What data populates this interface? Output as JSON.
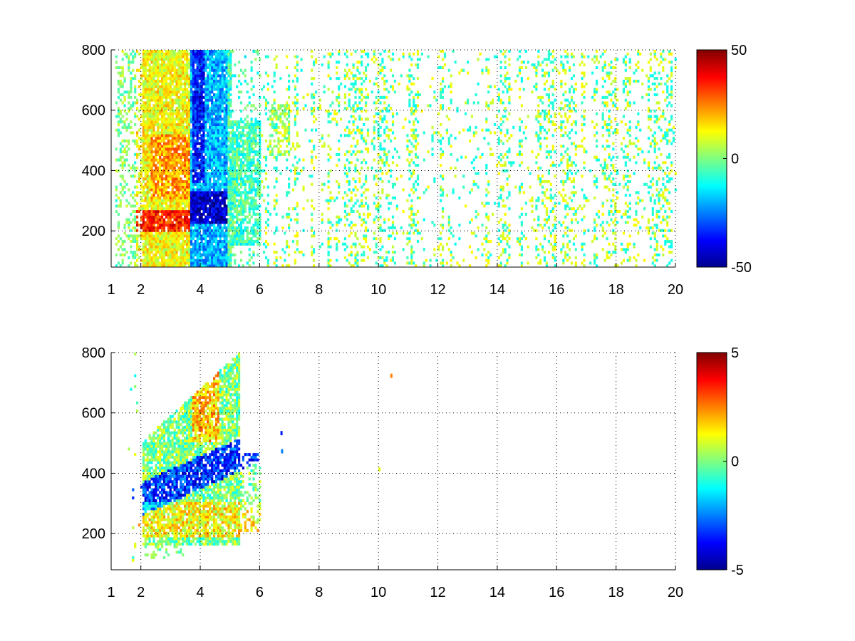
{
  "chart_data": [
    {
      "type": "heatmap",
      "title": "",
      "xlabel": "",
      "ylabel": "",
      "xlim": [
        1,
        20
      ],
      "ylim": [
        80,
        800
      ],
      "x_ticks": [
        "1",
        "2",
        "4",
        "6",
        "8",
        "10",
        "12",
        "14",
        "16",
        "18",
        "20"
      ],
      "x_tick_values": [
        1,
        2,
        4,
        6,
        8,
        10,
        12,
        14,
        16,
        18,
        20
      ],
      "y_ticks": [
        "200",
        "400",
        "600",
        "800"
      ],
      "y_tick_values": [
        200,
        400,
        600,
        800
      ],
      "grid": true,
      "colormap": "jet",
      "colorbar": {
        "min": -50,
        "max": 50,
        "ticks": [
          "50",
          "0",
          "-50"
        ],
        "tick_values": [
          50,
          0,
          -50
        ]
      },
      "data_summary": "Dense values for x in 1-6: positive (orange/red, up to ~40) near y 200-260 around x 2-3.5; strongly negative (blue, ~-45) around x 3.7-4.8, y 200-800; sparse values near 0 (-15 to 15) scattered for x > 6."
    },
    {
      "type": "heatmap",
      "title": "",
      "xlabel": "",
      "ylabel": "",
      "xlim": [
        1,
        20
      ],
      "ylim": [
        80,
        800
      ],
      "x_ticks": [
        "1",
        "2",
        "4",
        "6",
        "8",
        "10",
        "12",
        "14",
        "16",
        "18",
        "20"
      ],
      "x_tick_values": [
        1,
        2,
        4,
        6,
        8,
        10,
        12,
        14,
        16,
        18,
        20
      ],
      "y_ticks": [
        "200",
        "400",
        "600",
        "800"
      ],
      "y_tick_values": [
        200,
        400,
        600,
        800
      ],
      "grid": true,
      "colormap": "jet",
      "colorbar": {
        "min": -5,
        "max": 5,
        "ticks": [
          "5",
          "0",
          "-5"
        ],
        "tick_values": [
          5,
          0,
          -5
        ]
      },
      "data_summary": "Values only for x in 1.5-6 (plus isolated points near x 6.7, 10, 10.4); band of negative values (~-3 to -4) near y 300-450 rising toward y 500 by x 5; positive values (~1-3) in y 200-300 and near x 3.8-4.5 above y 500."
    }
  ]
}
